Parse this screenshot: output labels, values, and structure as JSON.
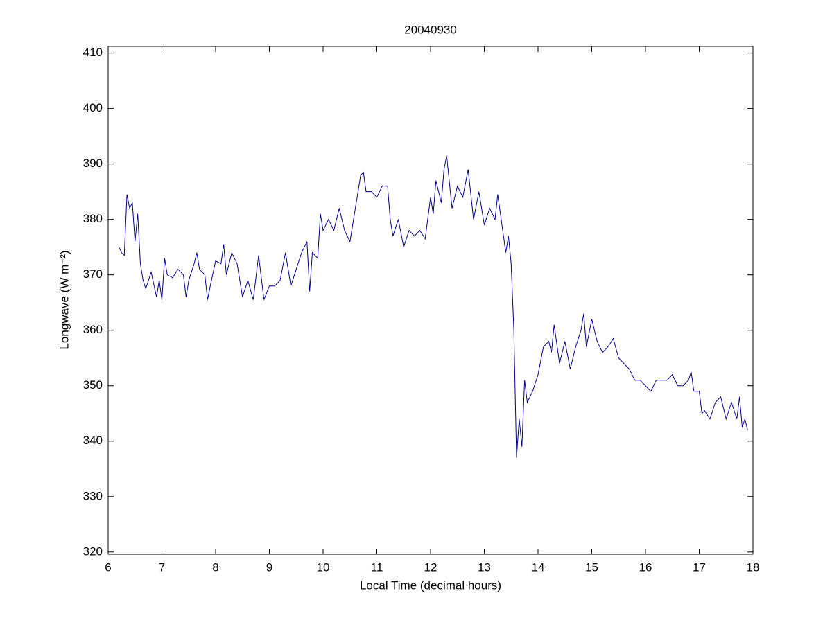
{
  "chart_data": {
    "type": "line",
    "title": "20040930",
    "x_label": "Local Time (decimal hours)",
    "y_label": "Longwave (W m⁻²)",
    "xlim": [
      6,
      18
    ],
    "xticks": [
      6,
      7,
      8,
      9,
      10,
      11,
      12,
      13,
      14,
      15,
      16,
      17,
      18
    ],
    "ylim": [
      319.6,
      411.2
    ],
    "yticks": [
      320,
      330,
      340,
      350,
      360,
      370,
      380,
      390,
      400,
      410
    ],
    "grid": false,
    "series": [
      {
        "color": "#00008b",
        "x": [
          6.2,
          6.25,
          6.3,
          6.35,
          6.4,
          6.45,
          6.5,
          6.55,
          6.6,
          6.65,
          6.7,
          6.8,
          6.9,
          6.95,
          7.0,
          7.05,
          7.1,
          7.2,
          7.3,
          7.4,
          7.45,
          7.5,
          7.6,
          7.65,
          7.7,
          7.8,
          7.85,
          7.9,
          8.0,
          8.1,
          8.15,
          8.2,
          8.3,
          8.4,
          8.5,
          8.6,
          8.7,
          8.8,
          8.9,
          9.0,
          9.1,
          9.2,
          9.3,
          9.4,
          9.5,
          9.6,
          9.7,
          9.75,
          9.8,
          9.9,
          9.95,
          10.0,
          10.1,
          10.2,
          10.3,
          10.4,
          10.5,
          10.6,
          10.7,
          10.75,
          10.8,
          10.9,
          11.0,
          11.1,
          11.2,
          11.25,
          11.3,
          11.4,
          11.5,
          11.6,
          11.7,
          11.8,
          11.9,
          12.0,
          12.05,
          12.1,
          12.2,
          12.25,
          12.3,
          12.4,
          12.5,
          12.6,
          12.7,
          12.8,
          12.9,
          13.0,
          13.1,
          13.2,
          13.25,
          13.3,
          13.4,
          13.45,
          13.5,
          13.55,
          13.6,
          13.65,
          13.7,
          13.75,
          13.8,
          13.9,
          14.0,
          14.1,
          14.2,
          14.25,
          14.3,
          14.4,
          14.5,
          14.6,
          14.7,
          14.8,
          14.85,
          14.9,
          15.0,
          15.1,
          15.2,
          15.3,
          15.4,
          15.5,
          15.6,
          15.7,
          15.8,
          15.9,
          16.0,
          16.1,
          16.2,
          16.3,
          16.4,
          16.5,
          16.6,
          16.7,
          16.8,
          16.85,
          16.9,
          17.0,
          17.05,
          17.1,
          17.2,
          17.3,
          17.4,
          17.5,
          17.6,
          17.7,
          17.75,
          17.8,
          17.85,
          17.9
        ],
        "values": [
          375,
          374,
          373.5,
          384.5,
          382,
          383,
          376,
          381,
          372,
          369,
          367.5,
          370.5,
          366,
          369,
          365.5,
          373,
          370,
          369.5,
          371,
          370,
          366,
          369,
          372,
          374,
          371,
          370,
          365.5,
          368,
          372.5,
          372,
          375.5,
          370,
          374,
          372,
          366,
          369,
          365.5,
          373.5,
          365.5,
          368,
          368,
          369,
          374,
          368,
          371,
          374,
          376,
          367,
          374,
          373,
          381,
          378,
          380,
          378,
          382,
          378,
          376,
          382,
          388,
          388.5,
          385,
          385,
          384,
          386,
          386,
          380,
          377,
          380,
          375,
          378,
          377,
          378,
          376.5,
          384,
          381,
          387,
          383,
          389,
          391.5,
          382,
          386,
          384,
          389,
          380,
          385,
          379,
          382,
          380,
          384.5,
          381,
          374,
          377,
          372,
          360,
          337,
          344,
          339,
          351,
          347,
          349,
          352,
          357,
          358,
          356,
          361,
          354,
          358,
          353,
          357,
          360,
          363,
          357,
          362,
          358,
          356,
          357,
          358.5,
          355,
          354,
          353,
          351,
          351,
          350,
          349,
          351,
          351,
          351,
          352,
          350,
          350,
          351,
          352.5,
          349,
          349,
          345,
          345.5,
          344,
          347,
          348,
          344,
          347,
          344,
          348,
          342.5,
          344,
          342
        ]
      }
    ]
  }
}
